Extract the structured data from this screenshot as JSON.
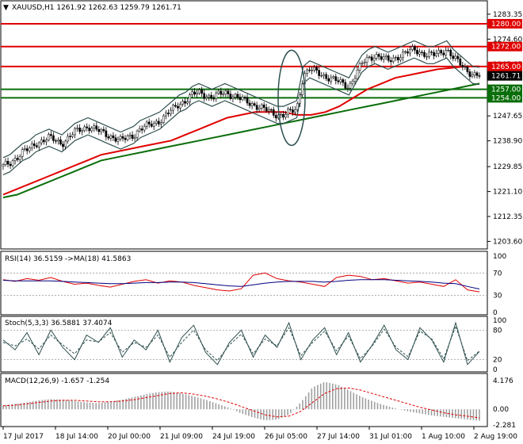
{
  "symbol_header": "XAUUSD,H1  1261.92 1262.63 1259.79 1261.71",
  "colors": {
    "ma_red": "#e00000",
    "ma_green": "#0a6e0a",
    "level_red": "#e00000",
    "level_green": "#0a6e0a",
    "envelope": "#2f4f4f",
    "candle": "#000000",
    "rsi_line": "#e00000",
    "rsi_ma": "#000080",
    "stoch_main": "#2f4f4f",
    "stoch_signal": "#2f4f4f",
    "macd_hist": "#a0a0a0",
    "macd_signal": "#e00000"
  },
  "chart_data": [
    {
      "type": "candlestick",
      "title": "XAUUSD,H1",
      "ohlc_last": {
        "open": 1261.92,
        "high": 1262.63,
        "low": 1259.79,
        "close": 1261.71
      },
      "y_ticks": [
        1283.35,
        1274.6,
        1265.85,
        1256.35,
        1247.65,
        1238.9,
        1229.85,
        1221.1,
        1212.35,
        1203.6
      ],
      "ylim": [
        1201.5,
        1287.5
      ],
      "x_tick_labels": [
        "17 Jul 2017",
        "18 Jul 14:00",
        "20 Jul 00:00",
        "21 Jul 09:00",
        "24 Jul 19:00",
        "26 Jul 05:00",
        "27 Jul 14:00",
        "31 Jul 01:00",
        "1 Aug 10:00",
        "2 Aug 19:00"
      ],
      "levels": [
        {
          "value": 1280.0,
          "label": "1280.00",
          "color": "red"
        },
        {
          "value": 1272.0,
          "label": "1272.00",
          "color": "red"
        },
        {
          "value": 1265.0,
          "label": "1265.00",
          "color": "red"
        },
        {
          "value": 1257.0,
          "label": "1257.00",
          "color": "green"
        },
        {
          "value": 1254.0,
          "label": "1254.00",
          "color": "green"
        }
      ],
      "current_price_label": "1261.71",
      "close_path": [
        1230,
        1231,
        1233,
        1235,
        1236,
        1238,
        1239,
        1240,
        1239,
        1238,
        1240,
        1242,
        1243,
        1244,
        1243,
        1242,
        1241,
        1240,
        1239,
        1240,
        1241,
        1243,
        1244,
        1245,
        1246,
        1248,
        1250,
        1252,
        1253,
        1255,
        1256,
        1255,
        1254,
        1255,
        1256,
        1255,
        1254,
        1253,
        1252,
        1251,
        1250,
        1249,
        1248,
        1248,
        1249,
        1250,
        1262,
        1264,
        1263,
        1262,
        1261,
        1260,
        1259,
        1258,
        1262,
        1266,
        1268,
        1269,
        1268,
        1267,
        1268,
        1269,
        1270,
        1271,
        1270,
        1269,
        1269,
        1270,
        1271,
        1268,
        1266,
        1264,
        1262,
        1261.7
      ],
      "ma_fast": [
        1220,
        1222,
        1224,
        1226,
        1228,
        1230,
        1232,
        1234,
        1235,
        1236,
        1237,
        1238,
        1239,
        1241,
        1243,
        1245,
        1247,
        1248,
        1249,
        1249,
        1249,
        1248,
        1248,
        1249,
        1251,
        1254,
        1257,
        1259,
        1261,
        1262,
        1263,
        1264,
        1264.5,
        1265,
        1265
      ],
      "ma_slow": [
        1219,
        1220,
        1222,
        1224,
        1226,
        1228,
        1230,
        1232,
        1233,
        1234,
        1235,
        1236,
        1237,
        1238,
        1239,
        1240,
        1241,
        1242,
        1243,
        1244,
        1245,
        1246,
        1247,
        1248,
        1249,
        1250,
        1251,
        1252,
        1253,
        1254,
        1255,
        1256,
        1257,
        1258,
        1259
      ]
    },
    {
      "type": "line",
      "title": "RSI(14) 36.5159 ->MA(18) 41.5863",
      "y_ticks": [
        100,
        70,
        30,
        0
      ],
      "ylim": [
        0,
        100
      ],
      "series": [
        {
          "name": "RSI(14)",
          "values": [
            58,
            55,
            60,
            57,
            62,
            55,
            50,
            52,
            48,
            45,
            50,
            55,
            58,
            52,
            56,
            54,
            48,
            44,
            40,
            38,
            42,
            66,
            70,
            60,
            56,
            54,
            50,
            46,
            62,
            66,
            64,
            58,
            60,
            56,
            52,
            54,
            50,
            46,
            58,
            40,
            36.5
          ]
        },
        {
          "name": "MA(18)",
          "values": [
            57,
            56,
            56,
            56,
            56,
            55,
            54,
            53,
            52,
            51,
            51,
            52,
            53,
            53,
            54,
            54,
            53,
            51,
            49,
            47,
            46,
            49,
            52,
            54,
            55,
            55,
            55,
            54,
            55,
            57,
            58,
            58,
            58,
            57,
            56,
            55,
            54,
            52,
            51,
            46,
            41.6
          ]
        }
      ]
    },
    {
      "type": "line",
      "title": "Stoch(5,3,3) 36.5881 37.4074",
      "y_ticks": [
        100,
        80,
        20,
        0
      ],
      "ylim": [
        0,
        100
      ],
      "series": [
        {
          "name": "%K",
          "values": [
            60,
            40,
            75,
            30,
            80,
            45,
            20,
            70,
            55,
            85,
            25,
            60,
            40,
            80,
            15,
            65,
            90,
            35,
            10,
            55,
            80,
            25,
            70,
            45,
            95,
            20,
            60,
            85,
            30,
            75,
            15,
            50,
            90,
            40,
            20,
            85,
            60,
            15,
            95,
            10,
            36.6
          ]
        },
        {
          "name": "%D",
          "values": [
            55,
            48,
            62,
            42,
            70,
            50,
            32,
            60,
            56,
            75,
            35,
            55,
            45,
            70,
            25,
            55,
            80,
            40,
            18,
            50,
            72,
            32,
            62,
            48,
            85,
            28,
            55,
            78,
            38,
            68,
            22,
            48,
            82,
            45,
            26,
            78,
            62,
            22,
            88,
            18,
            37.4
          ]
        }
      ]
    },
    {
      "type": "bar",
      "title": "MACD(12,26,9) -1.657 -1.254",
      "y_ticks": [
        4.176,
        0.0,
        -2.281
      ],
      "ylim": [
        -2.281,
        4.176
      ],
      "series": [
        {
          "name": "MACD",
          "values": [
            0.6,
            0.8,
            1.0,
            1.3,
            1.5,
            1.4,
            1.2,
            1.0,
            0.9,
            1.1,
            1.4,
            1.8,
            2.2,
            2.5,
            2.6,
            2.3,
            1.9,
            1.4,
            0.8,
            0.2,
            -0.6,
            -1.2,
            -1.6,
            -1.5,
            -0.8,
            1.0,
            3.2,
            4.0,
            3.6,
            2.8,
            1.9,
            1.2,
            0.6,
            0.1,
            -0.3,
            -0.6,
            -0.9,
            -1.1,
            -1.3,
            -1.5,
            -1.657
          ]
        },
        {
          "name": "Signal",
          "values": [
            0.5,
            0.6,
            0.8,
            1.0,
            1.2,
            1.3,
            1.3,
            1.2,
            1.1,
            1.1,
            1.2,
            1.4,
            1.7,
            2.0,
            2.3,
            2.4,
            2.2,
            1.9,
            1.5,
            1.0,
            0.4,
            -0.2,
            -0.8,
            -1.1,
            -1.0,
            -0.3,
            1.0,
            2.3,
            3.0,
            3.1,
            2.8,
            2.3,
            1.8,
            1.3,
            0.8,
            0.3,
            -0.1,
            -0.5,
            -0.8,
            -1.0,
            -1.254
          ]
        }
      ]
    }
  ]
}
